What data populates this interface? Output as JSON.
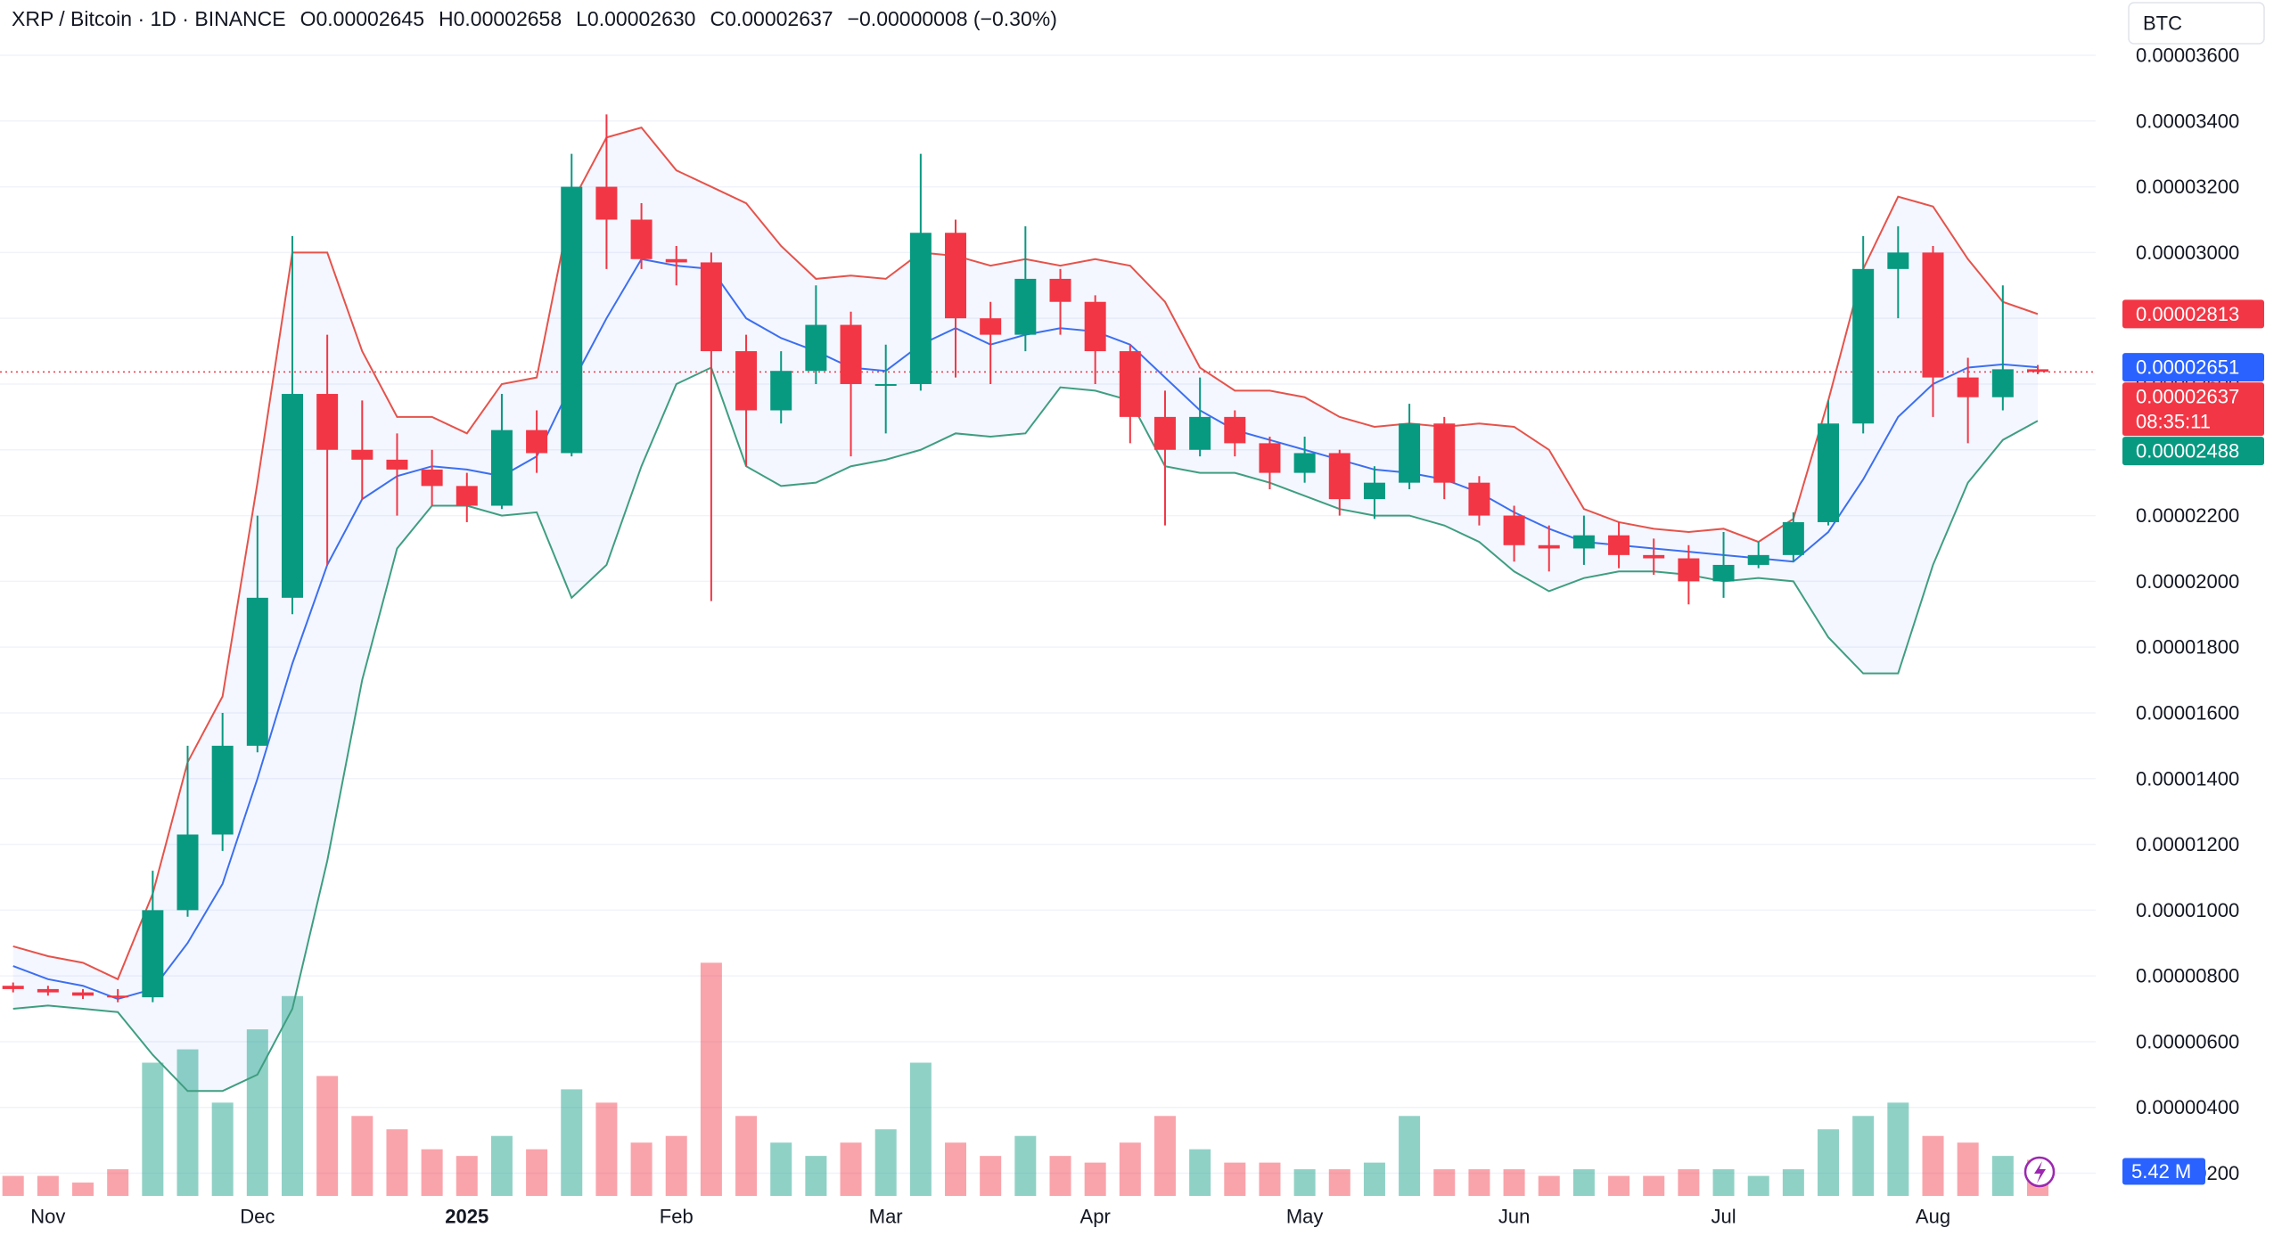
{
  "chart_data": {
    "type": "candlestick",
    "title": "XRP / Bitcoin · 1D · BINANCE",
    "header_values": [
      "O0.00002645",
      "H0.00002658",
      "L0.00002630",
      "C0.00002637",
      "−0.00000008 (−0.30%)"
    ],
    "currency": "BTC",
    "categories": [
      null,
      "Nov",
      null,
      null,
      null,
      null,
      null,
      "Dec",
      null,
      null,
      null,
      null,
      null,
      "2025",
      null,
      null,
      null,
      null,
      null,
      "Feb",
      null,
      null,
      null,
      null,
      null,
      "Mar",
      null,
      null,
      null,
      null,
      null,
      "Apr",
      null,
      null,
      null,
      null,
      null,
      "May",
      null,
      null,
      null,
      null,
      null,
      "Jun",
      null,
      null,
      null,
      null,
      null,
      "Jul",
      null,
      null,
      null,
      null,
      null,
      "Aug",
      null,
      null,
      null
    ],
    "open": [
      7.7e-06,
      7.6e-06,
      7.5e-06,
      7.4e-06,
      7.35e-06,
      1e-05,
      1.23e-05,
      1.5e-05,
      1.95e-05,
      2.57e-05,
      2.4e-05,
      2.37e-05,
      2.34e-05,
      2.29e-05,
      2.23e-05,
      2.46e-05,
      2.39e-05,
      3.2e-05,
      3.1e-05,
      2.98e-05,
      2.97e-05,
      2.7e-05,
      2.52e-05,
      2.64e-05,
      2.78e-05,
      2.6e-05,
      2.6e-05,
      3.06e-05,
      2.8e-05,
      2.75e-05,
      2.92e-05,
      2.85e-05,
      2.7e-05,
      2.5e-05,
      2.4e-05,
      2.5e-05,
      2.42e-05,
      2.33e-05,
      2.39e-05,
      2.25e-05,
      2.3e-05,
      2.48e-05,
      2.3e-05,
      2.2e-05,
      2.11e-05,
      2.1e-05,
      2.14e-05,
      2.08e-05,
      2.07e-05,
      2e-05,
      2.05e-05,
      2.08e-05,
      2.18e-05,
      2.48e-05,
      2.95e-05,
      3e-05,
      2.62e-05,
      2.56e-05,
      2.645e-05
    ],
    "high": [
      7.8e-06,
      7.7e-06,
      7.6e-06,
      7.6e-06,
      1.12e-05,
      1.5e-05,
      1.6e-05,
      2.2e-05,
      3.05e-05,
      2.75e-05,
      2.55e-05,
      2.45e-05,
      2.4e-05,
      2.33e-05,
      2.57e-05,
      2.52e-05,
      3.3e-05,
      3.42e-05,
      3.15e-05,
      3.02e-05,
      3e-05,
      2.75e-05,
      2.7e-05,
      2.9e-05,
      2.82e-05,
      2.72e-05,
      3.3e-05,
      3.1e-05,
      2.85e-05,
      3.08e-05,
      2.95e-05,
      2.87e-05,
      2.72e-05,
      2.58e-05,
      2.62e-05,
      2.52e-05,
      2.44e-05,
      2.44e-05,
      2.4e-05,
      2.35e-05,
      2.54e-05,
      2.5e-05,
      2.32e-05,
      2.23e-05,
      2.17e-05,
      2.2e-05,
      2.18e-05,
      2.13e-05,
      2.11e-05,
      2.15e-05,
      2.12e-05,
      2.21e-05,
      2.55e-05,
      3.05e-05,
      3.08e-05,
      3.02e-05,
      2.68e-05,
      2.9e-05,
      2.658e-05
    ],
    "low": [
      7.5e-06,
      7.4e-06,
      7.3e-06,
      7.2e-06,
      7.2e-06,
      9.8e-06,
      1.18e-05,
      1.48e-05,
      1.9e-05,
      2.05e-05,
      2.25e-05,
      2.2e-05,
      2.23e-05,
      2.18e-05,
      2.22e-05,
      2.33e-05,
      2.38e-05,
      2.95e-05,
      2.95e-05,
      2.9e-05,
      1.94e-05,
      2.35e-05,
      2.48e-05,
      2.6e-05,
      2.38e-05,
      2.45e-05,
      2.58e-05,
      2.62e-05,
      2.6e-05,
      2.7e-05,
      2.75e-05,
      2.6e-05,
      2.42e-05,
      2.17e-05,
      2.38e-05,
      2.38e-05,
      2.28e-05,
      2.3e-05,
      2.2e-05,
      2.19e-05,
      2.28e-05,
      2.25e-05,
      2.17e-05,
      2.06e-05,
      2.03e-05,
      2.05e-05,
      2.04e-05,
      2.02e-05,
      1.93e-05,
      1.95e-05,
      2.04e-05,
      2.06e-05,
      2.17e-05,
      2.45e-05,
      2.8e-05,
      2.5e-05,
      2.42e-05,
      2.52e-05,
      2.63e-05
    ],
    "close": [
      7.6e-06,
      7.5e-06,
      7.4e-06,
      7.35e-06,
      1e-05,
      1.23e-05,
      1.5e-05,
      1.95e-05,
      2.57e-05,
      2.4e-05,
      2.37e-05,
      2.34e-05,
      2.29e-05,
      2.23e-05,
      2.46e-05,
      2.39e-05,
      3.2e-05,
      3.1e-05,
      2.98e-05,
      2.97e-05,
      2.7e-05,
      2.52e-05,
      2.64e-05,
      2.78e-05,
      2.6e-05,
      2.6e-05,
      3.06e-05,
      2.8e-05,
      2.75e-05,
      2.92e-05,
      2.85e-05,
      2.7e-05,
      2.5e-05,
      2.4e-05,
      2.5e-05,
      2.42e-05,
      2.33e-05,
      2.39e-05,
      2.25e-05,
      2.3e-05,
      2.48e-05,
      2.3e-05,
      2.2e-05,
      2.11e-05,
      2.1e-05,
      2.14e-05,
      2.08e-05,
      2.07e-05,
      2e-05,
      2.05e-05,
      2.08e-05,
      2.18e-05,
      2.48e-05,
      2.95e-05,
      3e-05,
      2.62e-05,
      2.56e-05,
      2.645e-05,
      2.637e-05
    ],
    "up_color": "#089981",
    "down_color": "#f23645",
    "bands": {
      "upper": [
        8.9e-06,
        8.6e-06,
        8.4e-06,
        7.9e-06,
        1.05e-05,
        1.45e-05,
        1.65e-05,
        2.3e-05,
        3e-05,
        3e-05,
        2.7e-05,
        2.5e-05,
        2.5e-05,
        2.45e-05,
        2.6e-05,
        2.62e-05,
        3.15e-05,
        3.35e-05,
        3.38e-05,
        3.25e-05,
        3.2e-05,
        3.15e-05,
        3.02e-05,
        2.92e-05,
        2.93e-05,
        2.92e-05,
        3e-05,
        2.99e-05,
        2.96e-05,
        2.98e-05,
        2.96e-05,
        2.98e-05,
        2.96e-05,
        2.85e-05,
        2.65e-05,
        2.58e-05,
        2.58e-05,
        2.56e-05,
        2.5e-05,
        2.47e-05,
        2.48e-05,
        2.47e-05,
        2.48e-05,
        2.47e-05,
        2.4e-05,
        2.22e-05,
        2.18e-05,
        2.16e-05,
        2.15e-05,
        2.16e-05,
        2.12e-05,
        2.19e-05,
        2.55e-05,
        2.95e-05,
        3.17e-05,
        3.14e-05,
        2.98e-05,
        2.85e-05,
        2.813e-05
      ],
      "basis": [
        8.3e-06,
        7.9e-06,
        7.7e-06,
        7.3e-06,
        7.6e-06,
        9e-06,
        1.08e-05,
        1.4e-05,
        1.75e-05,
        2.05e-05,
        2.25e-05,
        2.32e-05,
        2.35e-05,
        2.34e-05,
        2.32e-05,
        2.38e-05,
        2.6e-05,
        2.8e-05,
        2.98e-05,
        2.96e-05,
        2.95e-05,
        2.8e-05,
        2.74e-05,
        2.7e-05,
        2.65e-05,
        2.64e-05,
        2.72e-05,
        2.77e-05,
        2.72e-05,
        2.75e-05,
        2.77e-05,
        2.76e-05,
        2.72e-05,
        2.62e-05,
        2.52e-05,
        2.46e-05,
        2.43e-05,
        2.4e-05,
        2.37e-05,
        2.34e-05,
        2.33e-05,
        2.31e-05,
        2.27e-05,
        2.21e-05,
        2.16e-05,
        2.12e-05,
        2.11e-05,
        2.1e-05,
        2.09e-05,
        2.08e-05,
        2.07e-05,
        2.06e-05,
        2.15e-05,
        2.31e-05,
        2.5e-05,
        2.6e-05,
        2.65e-05,
        2.66e-05,
        2.651e-05
      ],
      "lower": [
        7e-06,
        7.1e-06,
        7e-06,
        6.9e-06,
        5.6e-06,
        4.5e-06,
        4.5e-06,
        5e-06,
        7e-06,
        1.15e-05,
        1.7e-05,
        2.1e-05,
        2.23e-05,
        2.23e-05,
        2.2e-05,
        2.21e-05,
        1.95e-05,
        2.05e-05,
        2.35e-05,
        2.6e-05,
        2.65e-05,
        2.35e-05,
        2.29e-05,
        2.3e-05,
        2.35e-05,
        2.37e-05,
        2.4e-05,
        2.45e-05,
        2.44e-05,
        2.45e-05,
        2.59e-05,
        2.58e-05,
        2.55e-05,
        2.35e-05,
        2.33e-05,
        2.33e-05,
        2.3e-05,
        2.26e-05,
        2.22e-05,
        2.2e-05,
        2.2e-05,
        2.17e-05,
        2.12e-05,
        2.03e-05,
        1.97e-05,
        2.01e-05,
        2.03e-05,
        2.03e-05,
        2.02e-05,
        2e-05,
        2.01e-05,
        2e-05,
        1.83e-05,
        1.72e-05,
        1.72e-05,
        2.05e-05,
        2.3e-05,
        2.43e-05,
        2.488e-05
      ],
      "upper_color": "#e5534b",
      "basis_color": "#3c6ff0",
      "lower_color": "#3f9e80",
      "fill_color": "#2962ff"
    },
    "volume": {
      "values": [
        3,
        3,
        2,
        4,
        20,
        22,
        14,
        25,
        30,
        18,
        12,
        10,
        7,
        6,
        9,
        7,
        16,
        14,
        8,
        9,
        35,
        12,
        8,
        6,
        8,
        10,
        20,
        8,
        6,
        9,
        6,
        5,
        8,
        12,
        7,
        5,
        5,
        4,
        4,
        5,
        12,
        4,
        4,
        4,
        3,
        4,
        3,
        3,
        4,
        4,
        3,
        4,
        10,
        12,
        14,
        9,
        8,
        6,
        5.42
      ],
      "last_label": "5.42 M",
      "color": "#2962ff"
    },
    "y2lim": [
      0,
      40
    ],
    "ylim": [
      1.31e-06,
      3.768e-05
    ],
    "yticks": [
      {
        "value": 2e-06,
        "label": "0.00000200"
      },
      {
        "value": 4e-06,
        "label": "0.00000400"
      },
      {
        "value": 6e-06,
        "label": "0.00000600"
      },
      {
        "value": 8e-06,
        "label": "0.00000800"
      },
      {
        "value": 1e-05,
        "label": "0.00001000"
      },
      {
        "value": 1.2e-05,
        "label": "0.00001200"
      },
      {
        "value": 1.4e-05,
        "label": "0.00001400"
      },
      {
        "value": 1.6e-05,
        "label": "0.00001600"
      },
      {
        "value": 1.8e-05,
        "label": "0.00001800"
      },
      {
        "value": 2e-05,
        "label": "0.00002000"
      },
      {
        "value": 2.2e-05,
        "label": "0.00002200"
      },
      {
        "value": 2.4e-05,
        "label": "0.00002400"
      },
      {
        "value": 2.6e-05,
        "label": "0.00002600"
      },
      {
        "value": 2.8e-05,
        "label": "0.00002800"
      },
      {
        "value": 3e-05,
        "label": "0.00003000"
      },
      {
        "value": 3.2e-05,
        "label": "0.00003200"
      },
      {
        "value": 3.4e-05,
        "label": "0.00003400"
      },
      {
        "value": 3.6e-05,
        "label": "0.00003600"
      }
    ],
    "grid": true,
    "price_labels": [
      {
        "value": 2.813e-05,
        "label": "0.00002813",
        "color": "#f23645"
      },
      {
        "value": 2.651e-05,
        "label": "0.00002651",
        "color": "#2962ff"
      },
      {
        "value": 2.637e-05,
        "label": "0.00002637",
        "color": "#f23645",
        "countdown": "08:35:11"
      },
      {
        "value": 2.488e-05,
        "label": "0.00002488",
        "color": "#089981"
      }
    ]
  }
}
